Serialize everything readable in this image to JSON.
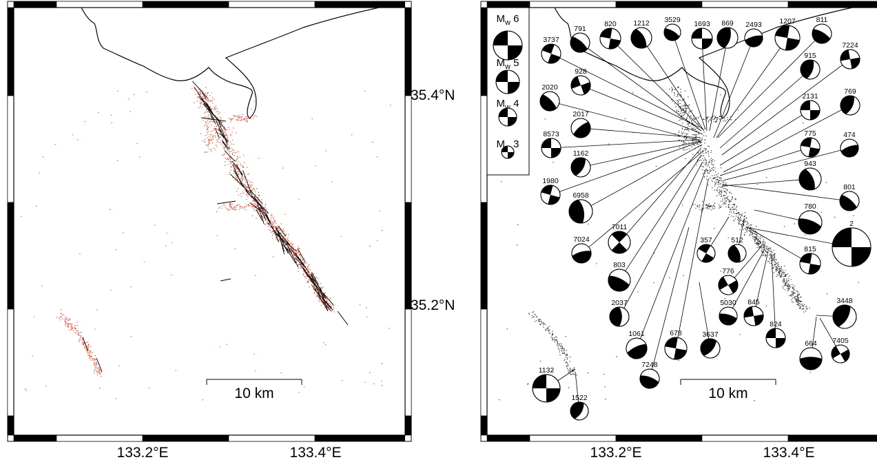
{
  "left_map": {
    "lat_labels": [
      "35.4°N",
      "35.2°N"
    ],
    "lon_labels": [
      "133.2°E",
      "133.4°E"
    ],
    "scale_bar": "10 km"
  },
  "right_map": {
    "lon_labels": [
      "133.2°E",
      "133.4°E"
    ],
    "scale_bar": "10 km",
    "legend": [
      {
        "label": "Mw 6",
        "base": "M",
        "sub": "w",
        "value": "6"
      },
      {
        "label": "Mw 5",
        "base": "M",
        "sub": "w",
        "value": "5"
      },
      {
        "label": "Mw 4",
        "base": "M",
        "sub": "w",
        "value": "4"
      },
      {
        "label": "Mw 3",
        "base": "M",
        "sub": "w",
        "value": "3"
      }
    ],
    "events": [
      {
        "id": "3737"
      },
      {
        "id": "791"
      },
      {
        "id": "820"
      },
      {
        "id": "1212"
      },
      {
        "id": "3529"
      },
      {
        "id": "1693"
      },
      {
        "id": "869"
      },
      {
        "id": "2493"
      },
      {
        "id": "1207"
      },
      {
        "id": "811"
      },
      {
        "id": "928"
      },
      {
        "id": "915"
      },
      {
        "id": "7224"
      },
      {
        "id": "2020"
      },
      {
        "id": "2131"
      },
      {
        "id": "769"
      },
      {
        "id": "2017"
      },
      {
        "id": "775"
      },
      {
        "id": "474"
      },
      {
        "id": "8573"
      },
      {
        "id": "1162"
      },
      {
        "id": "943"
      },
      {
        "id": "1980"
      },
      {
        "id": "801"
      },
      {
        "id": "6958"
      },
      {
        "id": "780"
      },
      {
        "id": "7011"
      },
      {
        "id": "2"
      },
      {
        "id": "7024"
      },
      {
        "id": "357"
      },
      {
        "id": "512"
      },
      {
        "id": "815"
      },
      {
        "id": "803"
      },
      {
        "id": "776"
      },
      {
        "id": "2037"
      },
      {
        "id": "5030"
      },
      {
        "id": "845"
      },
      {
        "id": "3448"
      },
      {
        "id": "824"
      },
      {
        "id": "1061"
      },
      {
        "id": "678"
      },
      {
        "id": "3637"
      },
      {
        "id": "664"
      },
      {
        "id": "7405"
      },
      {
        "id": "7248"
      },
      {
        "id": "1132"
      },
      {
        "id": "1522"
      }
    ]
  }
}
